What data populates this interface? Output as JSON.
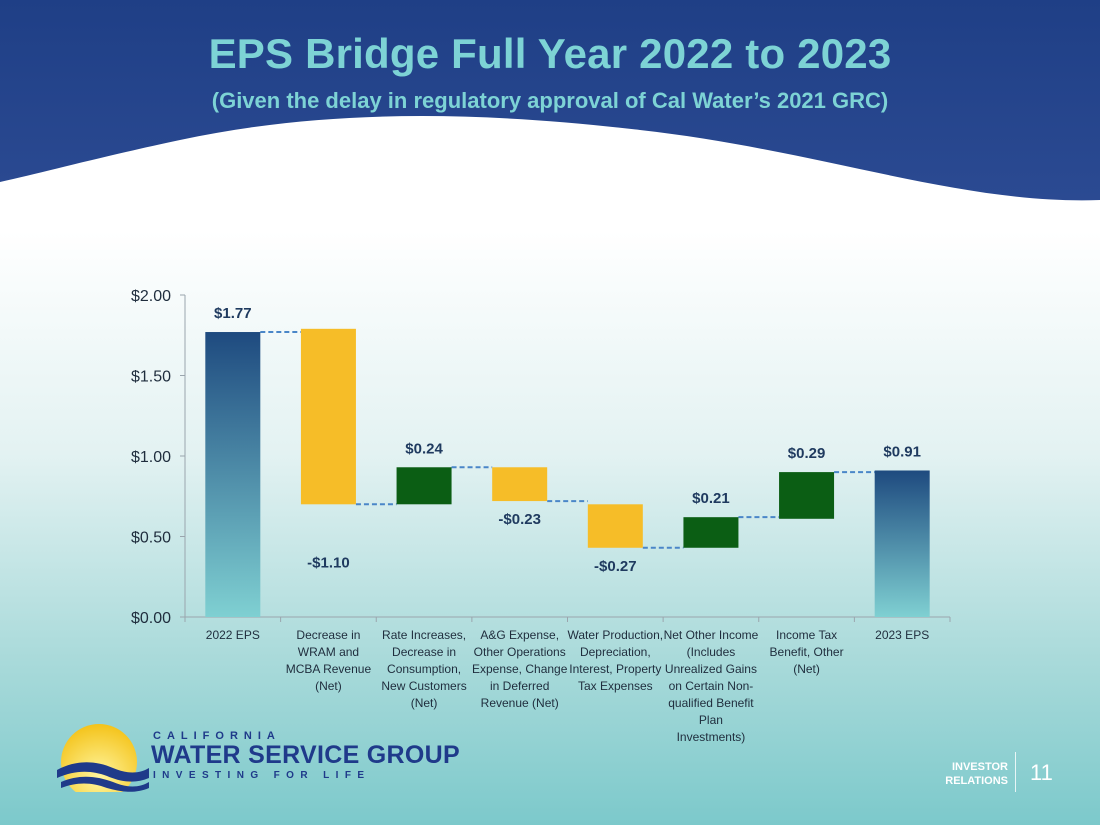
{
  "header": {
    "title": "EPS Bridge Full Year 2022 to 2023",
    "subtitle": "(Given the delay in regulatory approval of Cal Water’s 2021 GRC)"
  },
  "chart_data": {
    "type": "waterfall",
    "title": "EPS Bridge Full Year 2022 to 2023",
    "ylim": [
      0,
      2
    ],
    "yticks": [
      "$0.00",
      "$0.50",
      "$1.00",
      "$1.50",
      "$2.00"
    ],
    "ytick_values": [
      0,
      0.5,
      1.0,
      1.5,
      2.0
    ],
    "categories": [
      "2022 EPS",
      "Decrease in WRAM and MCBA Revenue (Net)",
      "Rate Increases, Decrease in Consumption, New Customers (Net)",
      "A&G Expense, Other Operations Expense, Change in Deferred Revenue (Net)",
      "Water Production, Depreciation, Interest, Property Tax Expenses",
      "Net Other Income (Includes Unrealized Gains on Certain Non-qualified Benefit Plan Investments)",
      "Income Tax Benefit, Other (Net)",
      "2023 EPS"
    ],
    "bars": [
      {
        "kind": "total",
        "start": 0,
        "end": 1.77,
        "label": "$1.77"
      },
      {
        "kind": "decrease",
        "start": 1.79,
        "end": 0.7,
        "label": "-$1.10"
      },
      {
        "kind": "increase",
        "start": 0.7,
        "end": 0.93,
        "label": "$0.24"
      },
      {
        "kind": "decrease",
        "start": 0.93,
        "end": 0.72,
        "label": "-$0.23"
      },
      {
        "kind": "decrease",
        "start": 0.7,
        "end": 0.43,
        "label": "-$0.27"
      },
      {
        "kind": "increase",
        "start": 0.43,
        "end": 0.62,
        "label": "$0.21"
      },
      {
        "kind": "increase",
        "start": 0.61,
        "end": 0.9,
        "label": "$0.29"
      },
      {
        "kind": "total",
        "start": 0,
        "end": 0.91,
        "label": "$0.91"
      }
    ],
    "colors": {
      "total_top": "#1e4a7f",
      "total_bottom": "#7fd0d2",
      "decrease": "#f6bd28",
      "increase": "#0b5e14",
      "connector": "#4a86c8"
    }
  },
  "logo": {
    "top": "CALIFORNIA",
    "main": "WATER SERVICE GROUP",
    "tagline": "INVESTING FOR LIFE"
  },
  "footer": {
    "ir_line1": "INVESTOR",
    "ir_line2": "RELATIONS",
    "page_number": "11"
  }
}
